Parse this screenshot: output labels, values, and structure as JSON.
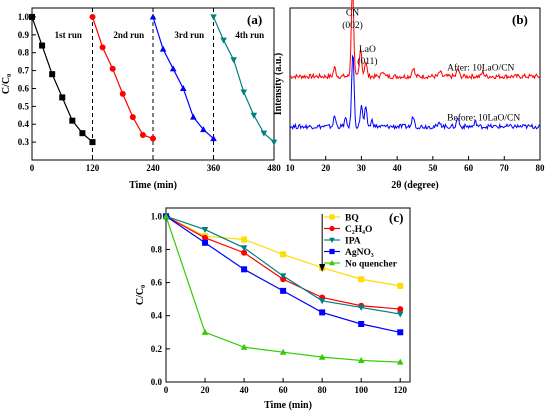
{
  "chart_data": [
    {
      "panel": "(a)",
      "type": "line",
      "xlabel": "Time (min)",
      "ylabel": "C/C₀",
      "xlim": [
        0,
        480
      ],
      "ylim": [
        0.2,
        1.05
      ],
      "xticks": [
        "0",
        "120",
        "240",
        "360",
        "480"
      ],
      "yticks": [
        "0.3",
        "0.4",
        "0.5",
        "0.6",
        "0.7",
        "0.8",
        "0.9",
        "1.0"
      ],
      "dividers_x": [
        120,
        240,
        360
      ],
      "series": [
        {
          "name": "1st run",
          "color": "#000000",
          "marker": "square",
          "x": [
            0,
            20,
            40,
            60,
            80,
            100,
            120
          ],
          "y": [
            1.0,
            0.84,
            0.68,
            0.55,
            0.42,
            0.35,
            0.3
          ]
        },
        {
          "name": "2nd run",
          "color": "#ff0000",
          "marker": "circle",
          "x": [
            120,
            140,
            160,
            180,
            200,
            220,
            240
          ],
          "y": [
            1.0,
            0.83,
            0.71,
            0.57,
            0.44,
            0.34,
            0.32
          ]
        },
        {
          "name": "3rd run",
          "color": "#0000ff",
          "marker": "triangle-up",
          "x": [
            240,
            260,
            280,
            300,
            320,
            340,
            360
          ],
          "y": [
            1.0,
            0.82,
            0.71,
            0.6,
            0.44,
            0.37,
            0.32
          ]
        },
        {
          "name": "4th run",
          "color": "#008080",
          "marker": "triangle-down",
          "x": [
            360,
            380,
            400,
            420,
            440,
            460,
            480
          ],
          "y": [
            1.0,
            0.87,
            0.76,
            0.58,
            0.45,
            0.35,
            0.3
          ]
        }
      ]
    },
    {
      "panel": "(b)",
      "type": "line",
      "xlabel": "2θ (degree)",
      "ylabel": "Intensity (a.u.)",
      "xlim": [
        10,
        80
      ],
      "xticks": [
        "10",
        "20",
        "30",
        "40",
        "50",
        "60",
        "70",
        "80"
      ],
      "annotations": [
        {
          "text": "CN",
          "x": 27.5
        },
        {
          "text": "(002)",
          "x": 27.5
        },
        {
          "text": "LaO",
          "x": 30
        },
        {
          "text": "(011)",
          "x": 30
        }
      ],
      "series": [
        {
          "name": "After: 10LaO/CN",
          "color": "#ff0000",
          "baseline": 0.55,
          "peaks": [
            [
              22.5,
              0.06
            ],
            [
              27.5,
              0.62
            ],
            [
              29.8,
              0.18
            ],
            [
              31.2,
              0.1
            ],
            [
              36,
              0.04
            ],
            [
              44.5,
              0.06
            ],
            [
              52,
              0.03
            ],
            [
              57,
              0.05
            ],
            [
              64,
              0.03
            ]
          ]
        },
        {
          "name": "Before: 10LaO/CN",
          "color": "#0000ff",
          "baseline": 0.22,
          "peaks": [
            [
              22.5,
              0.07
            ],
            [
              25.5,
              0.05
            ],
            [
              27.6,
              0.5
            ],
            [
              30,
              0.14
            ],
            [
              31.2,
              0.12
            ],
            [
              33,
              0.04
            ],
            [
              44.5,
              0.07
            ],
            [
              52,
              0.03
            ],
            [
              57,
              0.06
            ],
            [
              62,
              0.03
            ]
          ]
        }
      ]
    },
    {
      "panel": "(c)",
      "type": "line",
      "xlabel": "Time (min)",
      "ylabel": "C/C₀",
      "xlim": [
        0,
        125
      ],
      "ylim": [
        0,
        1.05
      ],
      "xticks": [
        "0",
        "20",
        "40",
        "60",
        "80",
        "100",
        "120"
      ],
      "yticks": [
        "0.0",
        "0.2",
        "0.4",
        "0.6",
        "0.8",
        "1.0"
      ],
      "arrow_x": 80,
      "x": [
        0,
        20,
        40,
        60,
        80,
        100,
        120
      ],
      "series": [
        {
          "name": "BQ",
          "color": "#ffdd00",
          "marker": "square",
          "values": [
            1.0,
            0.88,
            0.86,
            0.77,
            0.69,
            0.62,
            0.58
          ]
        },
        {
          "name": "C₂H₄O",
          "color": "#ff0000",
          "marker": "circle",
          "values": [
            1.0,
            0.87,
            0.78,
            0.62,
            0.51,
            0.46,
            0.44
          ]
        },
        {
          "name": "IPA",
          "color": "#008080",
          "marker": "triangle-down",
          "values": [
            1.0,
            0.92,
            0.81,
            0.64,
            0.49,
            0.45,
            0.41
          ]
        },
        {
          "name": "AgNO₃",
          "color": "#0000ff",
          "marker": "square",
          "values": [
            1.0,
            0.84,
            0.68,
            0.55,
            0.42,
            0.35,
            0.3
          ]
        },
        {
          "name": "No quencher",
          "color": "#33cc00",
          "marker": "triangle-up",
          "values": [
            1.0,
            0.3,
            0.21,
            0.18,
            0.15,
            0.13,
            0.12
          ]
        }
      ]
    }
  ]
}
